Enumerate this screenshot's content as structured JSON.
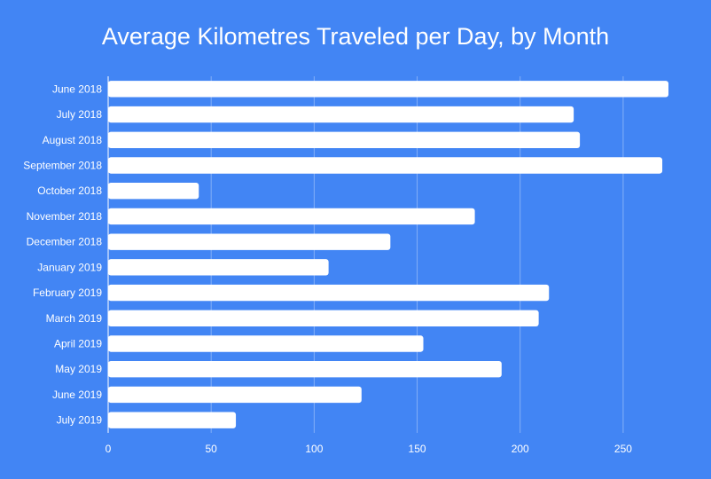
{
  "chart_data": {
    "type": "bar",
    "orientation": "horizontal",
    "title": "Average Kilometres Traveled per Day, by Month",
    "xlabel": "",
    "ylabel": "",
    "categories": [
      "June 2018",
      "July 2018",
      "August 2018",
      "September 2018",
      "October 2018",
      "November 2018",
      "December 2018",
      "January 2019",
      "February 2019",
      "March 2019",
      "April 2019",
      "May 2019",
      "June 2019",
      "July 2019"
    ],
    "values": [
      272,
      226,
      229,
      269,
      44,
      178,
      137,
      107,
      214,
      209,
      153,
      191,
      123,
      62
    ],
    "xlim": [
      0,
      275
    ],
    "xticks": [
      0,
      50,
      100,
      150,
      200,
      250
    ],
    "grid": true,
    "legend": "none",
    "colors": {
      "background": "#4285f4",
      "bar": "#ffffff",
      "text": "#ffffff"
    }
  }
}
